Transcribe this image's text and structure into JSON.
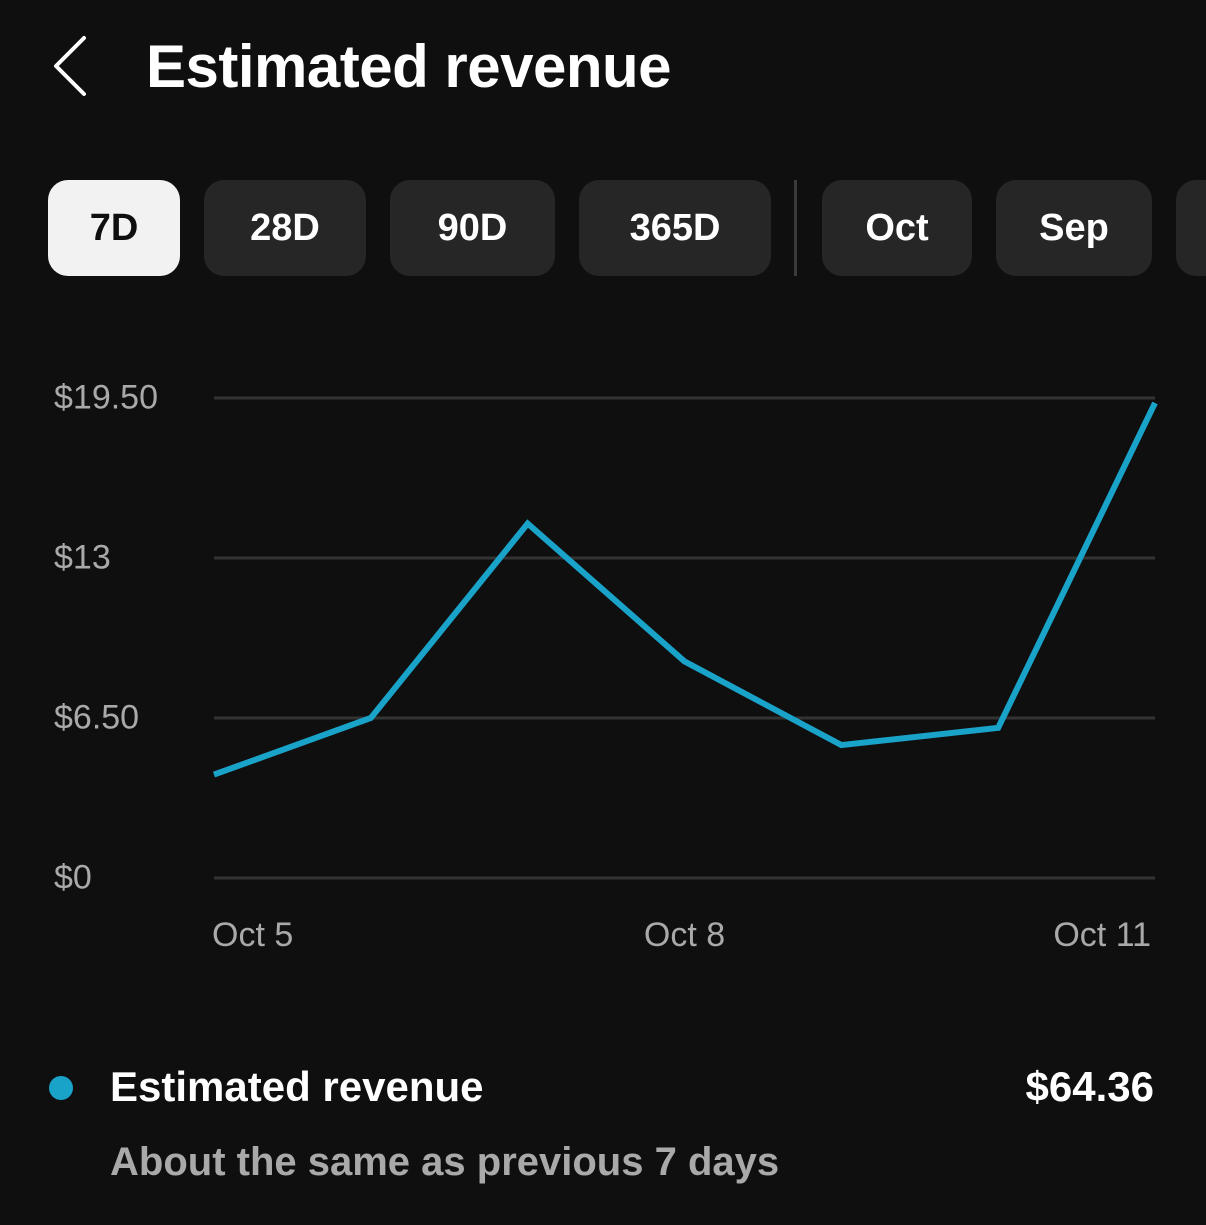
{
  "header": {
    "title": "Estimated revenue",
    "back_icon": "chevron-left-icon"
  },
  "tabs": [
    {
      "label": "7D",
      "active": true
    },
    {
      "label": "28D",
      "active": false
    },
    {
      "label": "90D",
      "active": false
    },
    {
      "label": "365D",
      "active": false
    },
    {
      "label": "Oct",
      "active": false
    },
    {
      "label": "Sep",
      "active": false
    },
    {
      "label": "",
      "active": false
    }
  ],
  "colors": {
    "background": "#0f0f0f",
    "line": "#1aa3c9",
    "grid": "#333333",
    "tab_bg": "#262626",
    "tab_active_bg": "#f2f2f2",
    "muted_text": "#a9a9a9"
  },
  "chart_data": {
    "type": "line",
    "x": [
      "Oct 5",
      "Oct 6",
      "Oct 7",
      "Oct 8",
      "Oct 9",
      "Oct 10",
      "Oct 11"
    ],
    "x_tick_labels": [
      "Oct 5",
      "Oct 8",
      "Oct 11"
    ],
    "y_tick_labels": [
      "$19.50",
      "$13",
      "$6.50",
      "$0"
    ],
    "y_ticks": [
      19.5,
      13,
      6.5,
      0
    ],
    "ylim": [
      0,
      19.5
    ],
    "grid": true,
    "series": [
      {
        "values": [
          4.2,
          6.5,
          14.4,
          8.8,
          5.4,
          6.1,
          19.3
        ]
      }
    ]
  },
  "legend": {
    "name": "Estimated revenue",
    "value": "$64.36",
    "comparison": "About the same as previous 7 days"
  }
}
